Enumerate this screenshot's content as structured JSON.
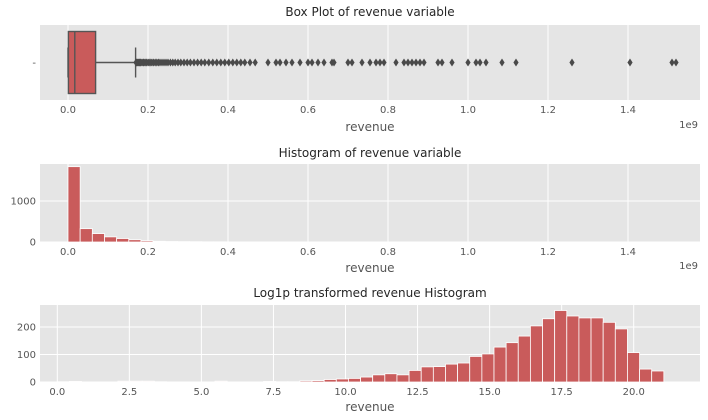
{
  "chart_data": [
    {
      "type": "box",
      "title": "Box Plot of revenue variable",
      "xlabel": "revenue",
      "ylabel": "",
      "y_tick_labels": [
        "-"
      ],
      "x_offset_label": "1e9",
      "xlim": [
        -0.07,
        1.58
      ],
      "x_ticks": [
        0.0,
        0.2,
        0.4,
        0.6,
        0.8,
        1.0,
        1.2,
        1.4
      ],
      "x_tick_labels": [
        "0.0",
        "0.2",
        "0.4",
        "0.6",
        "0.8",
        "1.0",
        "1.2",
        "1.4"
      ],
      "grid": true,
      "box_color": "#c95b5b",
      "line_color": "#555555",
      "box": {
        "min": 0.0,
        "q1": 0.001,
        "median": 0.017,
        "q3": 0.069,
        "whisker_high": 0.169
      },
      "outliers": [
        0.17,
        0.172,
        0.174,
        0.176,
        0.178,
        0.18,
        0.182,
        0.185,
        0.188,
        0.19,
        0.193,
        0.196,
        0.2,
        0.203,
        0.207,
        0.21,
        0.214,
        0.218,
        0.222,
        0.226,
        0.23,
        0.235,
        0.24,
        0.245,
        0.25,
        0.256,
        0.262,
        0.268,
        0.275,
        0.282,
        0.29,
        0.298,
        0.306,
        0.315,
        0.324,
        0.333,
        0.342,
        0.352,
        0.362,
        0.372,
        0.382,
        0.392,
        0.402,
        0.412,
        0.422,
        0.432,
        0.442,
        0.455,
        0.468,
        0.5,
        0.52,
        0.53,
        0.545,
        0.56,
        0.58,
        0.6,
        0.61,
        0.625,
        0.64,
        0.66,
        0.665,
        0.7,
        0.71,
        0.735,
        0.755,
        0.77,
        0.78,
        0.79,
        0.82,
        0.84,
        0.85,
        0.86,
        0.87,
        0.88,
        0.89,
        0.925,
        0.935,
        0.96,
        1.0,
        1.02,
        1.03,
        1.045,
        1.085,
        1.12,
        1.26,
        1.405,
        1.51,
        1.52
      ]
    },
    {
      "type": "bar",
      "title": "Histogram of revenue variable",
      "xlabel": "revenue",
      "ylabel": "",
      "x_offset_label": "1e9",
      "xlim": [
        -0.07,
        1.58
      ],
      "ylim": [
        0,
        1900
      ],
      "x_ticks": [
        0.0,
        0.2,
        0.4,
        0.6,
        0.8,
        1.0,
        1.2,
        1.4
      ],
      "x_tick_labels": [
        "0.0",
        "0.2",
        "0.4",
        "0.6",
        "0.8",
        "1.0",
        "1.2",
        "1.4"
      ],
      "y_ticks": [
        0,
        1000
      ],
      "y_tick_labels": [
        "0",
        "1000"
      ],
      "grid": true,
      "bar_color": "#c95b5b",
      "bin_width": 0.0304,
      "bins_start": 0.0,
      "values": [
        1835,
        325,
        205,
        125,
        85,
        55,
        30,
        18,
        12,
        9,
        7,
        5,
        4,
        3,
        2,
        2,
        2,
        1,
        1,
        1,
        1,
        1,
        1,
        1,
        1,
        1,
        1,
        1,
        1,
        1,
        1,
        1,
        1,
        1,
        1,
        1,
        1,
        1,
        1,
        0,
        0,
        1,
        0,
        0,
        0,
        1,
        0,
        0,
        0,
        1
      ]
    },
    {
      "type": "bar",
      "title": "Log1p transformed revenue Histogram",
      "xlabel": "revenue",
      "ylabel": "",
      "xlim": [
        -0.6,
        22.3
      ],
      "ylim": [
        0,
        280
      ],
      "x_ticks": [
        0.0,
        2.5,
        5.0,
        7.5,
        10.0,
        12.5,
        15.0,
        17.5,
        20.0
      ],
      "x_tick_labels": [
        "0.0",
        "2.5",
        "5.0",
        "7.5",
        "10.0",
        "12.5",
        "15.0",
        "17.5",
        "20.0"
      ],
      "y_ticks": [
        0,
        100,
        200
      ],
      "y_tick_labels": [
        "0",
        "100",
        "200"
      ],
      "grid": true,
      "bar_color": "#c95b5b",
      "bin_width": 0.4209,
      "bins_start": 0.0,
      "values": [
        1,
        2,
        0,
        0,
        0,
        3,
        3,
        3,
        1,
        0,
        0,
        0,
        0,
        3,
        0,
        0,
        0,
        2,
        1,
        1,
        4,
        5,
        9,
        11,
        13,
        18,
        26,
        30,
        26,
        42,
        55,
        56,
        65,
        69,
        93,
        102,
        127,
        143,
        167,
        204,
        230,
        260,
        240,
        233,
        233,
        217,
        193,
        107,
        47,
        40
      ]
    }
  ]
}
